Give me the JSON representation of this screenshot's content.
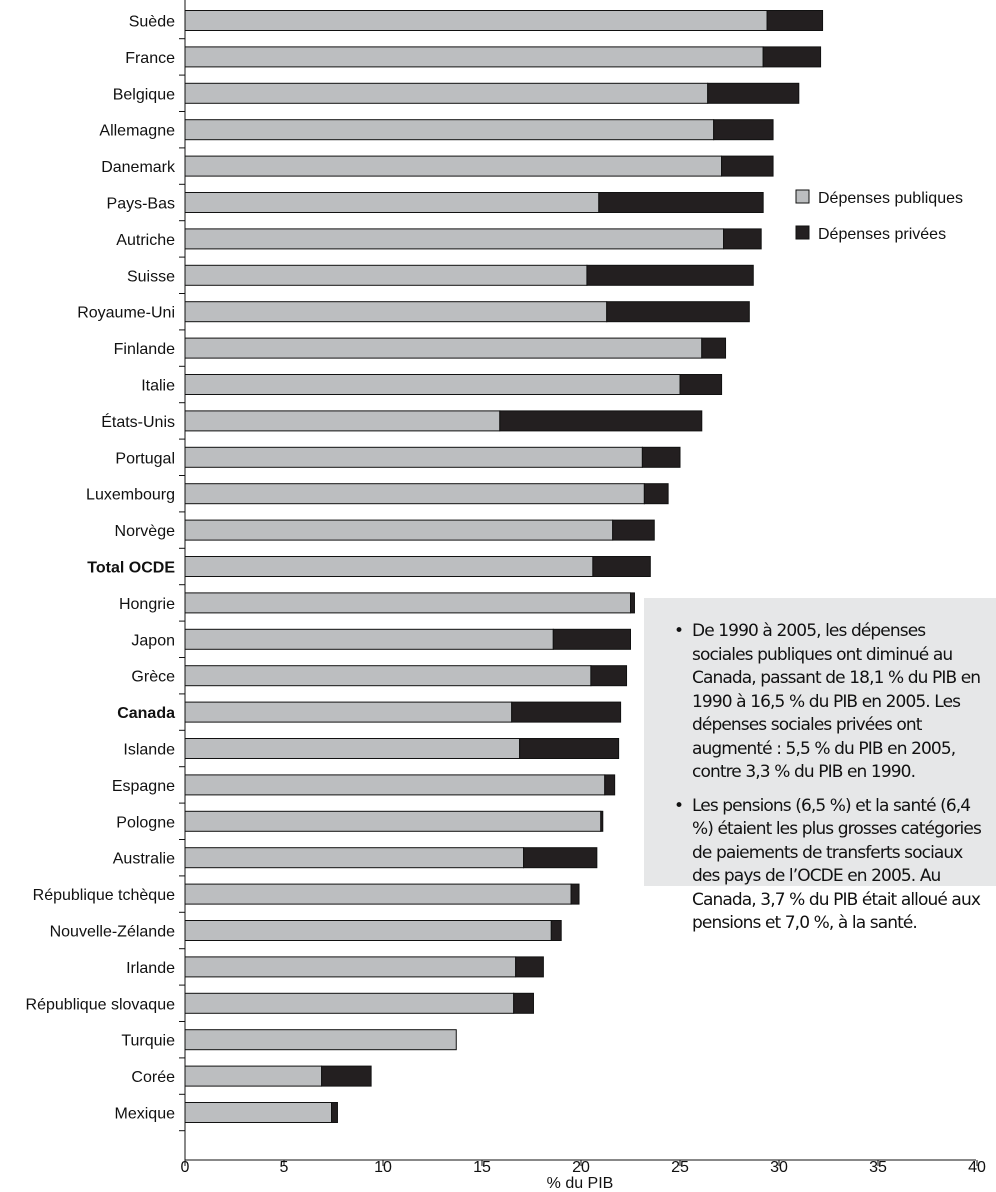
{
  "chart_data": {
    "type": "bar",
    "stacked": true,
    "orientation": "horizontal",
    "categories": [
      "Suède",
      "France",
      "Belgique",
      "Allemagne",
      "Danemark",
      "Pays-Bas",
      "Autriche",
      "Suisse",
      "Royaume-Uni",
      "Finlande",
      "Italie",
      "États-Unis",
      "Portugal",
      "Luxembourg",
      "Norvège",
      "Total OCDE",
      "Hongrie",
      "Japon",
      "Grèce",
      "Canada",
      "Islande",
      "Espagne",
      "Pologne",
      "Australie",
      "République tchèque",
      "Nouvelle-Zélande",
      "Irlande",
      "République slovaque",
      "Turquie",
      "Corée",
      "Mexique"
    ],
    "bold_categories": [
      "Total OCDE",
      "Canada"
    ],
    "series": [
      {
        "name": "Dépenses publiques",
        "color": "#bcbec0",
        "values": [
          29.4,
          29.2,
          26.4,
          26.7,
          27.1,
          20.9,
          27.2,
          20.3,
          21.3,
          26.1,
          25.0,
          15.9,
          23.1,
          23.2,
          21.6,
          20.6,
          22.5,
          18.6,
          20.5,
          16.5,
          16.9,
          21.2,
          21.0,
          17.1,
          19.5,
          18.5,
          16.7,
          16.6,
          13.7,
          6.9,
          7.4
        ],
        "extended": true
      },
      {
        "name": "Dépenses privées",
        "color": "#231f20",
        "values": [
          2.8,
          2.9,
          4.6,
          3.0,
          2.6,
          8.3,
          1.9,
          8.4,
          7.2,
          1.2,
          2.1,
          10.2,
          1.9,
          1.2,
          2.1,
          2.9,
          0.2,
          3.9,
          1.8,
          5.5,
          5.0,
          0.5,
          0.1,
          3.7,
          0.4,
          0.5,
          1.4,
          1.0,
          0.0,
          2.5,
          0.3
        ]
      }
    ],
    "xlabel": "% du PIB",
    "xlim": [
      0,
      40
    ],
    "xticks": [
      0,
      5,
      10,
      15,
      20,
      25,
      30,
      35,
      40
    ],
    "legend_position": "right"
  },
  "legend": {
    "public_label": "Dépenses publiques",
    "private_label": "Dépenses privées"
  },
  "note": {
    "bullets": [
      "De 1990 à 2005, les dépenses sociales publiques ont diminué au Canada, passant de 18,1 % du PIB en 1990 à 16,5 % du PIB en 2005. Les dépenses sociales privées ont augmenté : 5,5 % du PIB en 2005, contre 3,3 % du PIB en 1990.",
      "Les pensions (6,5 %) et la santé (6,4 %) étaient les plus grosses catégories de paiements de transferts sociaux des pays de l’OCDE en 2005. Au Canada, 3,7 % du PIB était alloué aux pensions et 7,0 %, à la santé."
    ]
  }
}
